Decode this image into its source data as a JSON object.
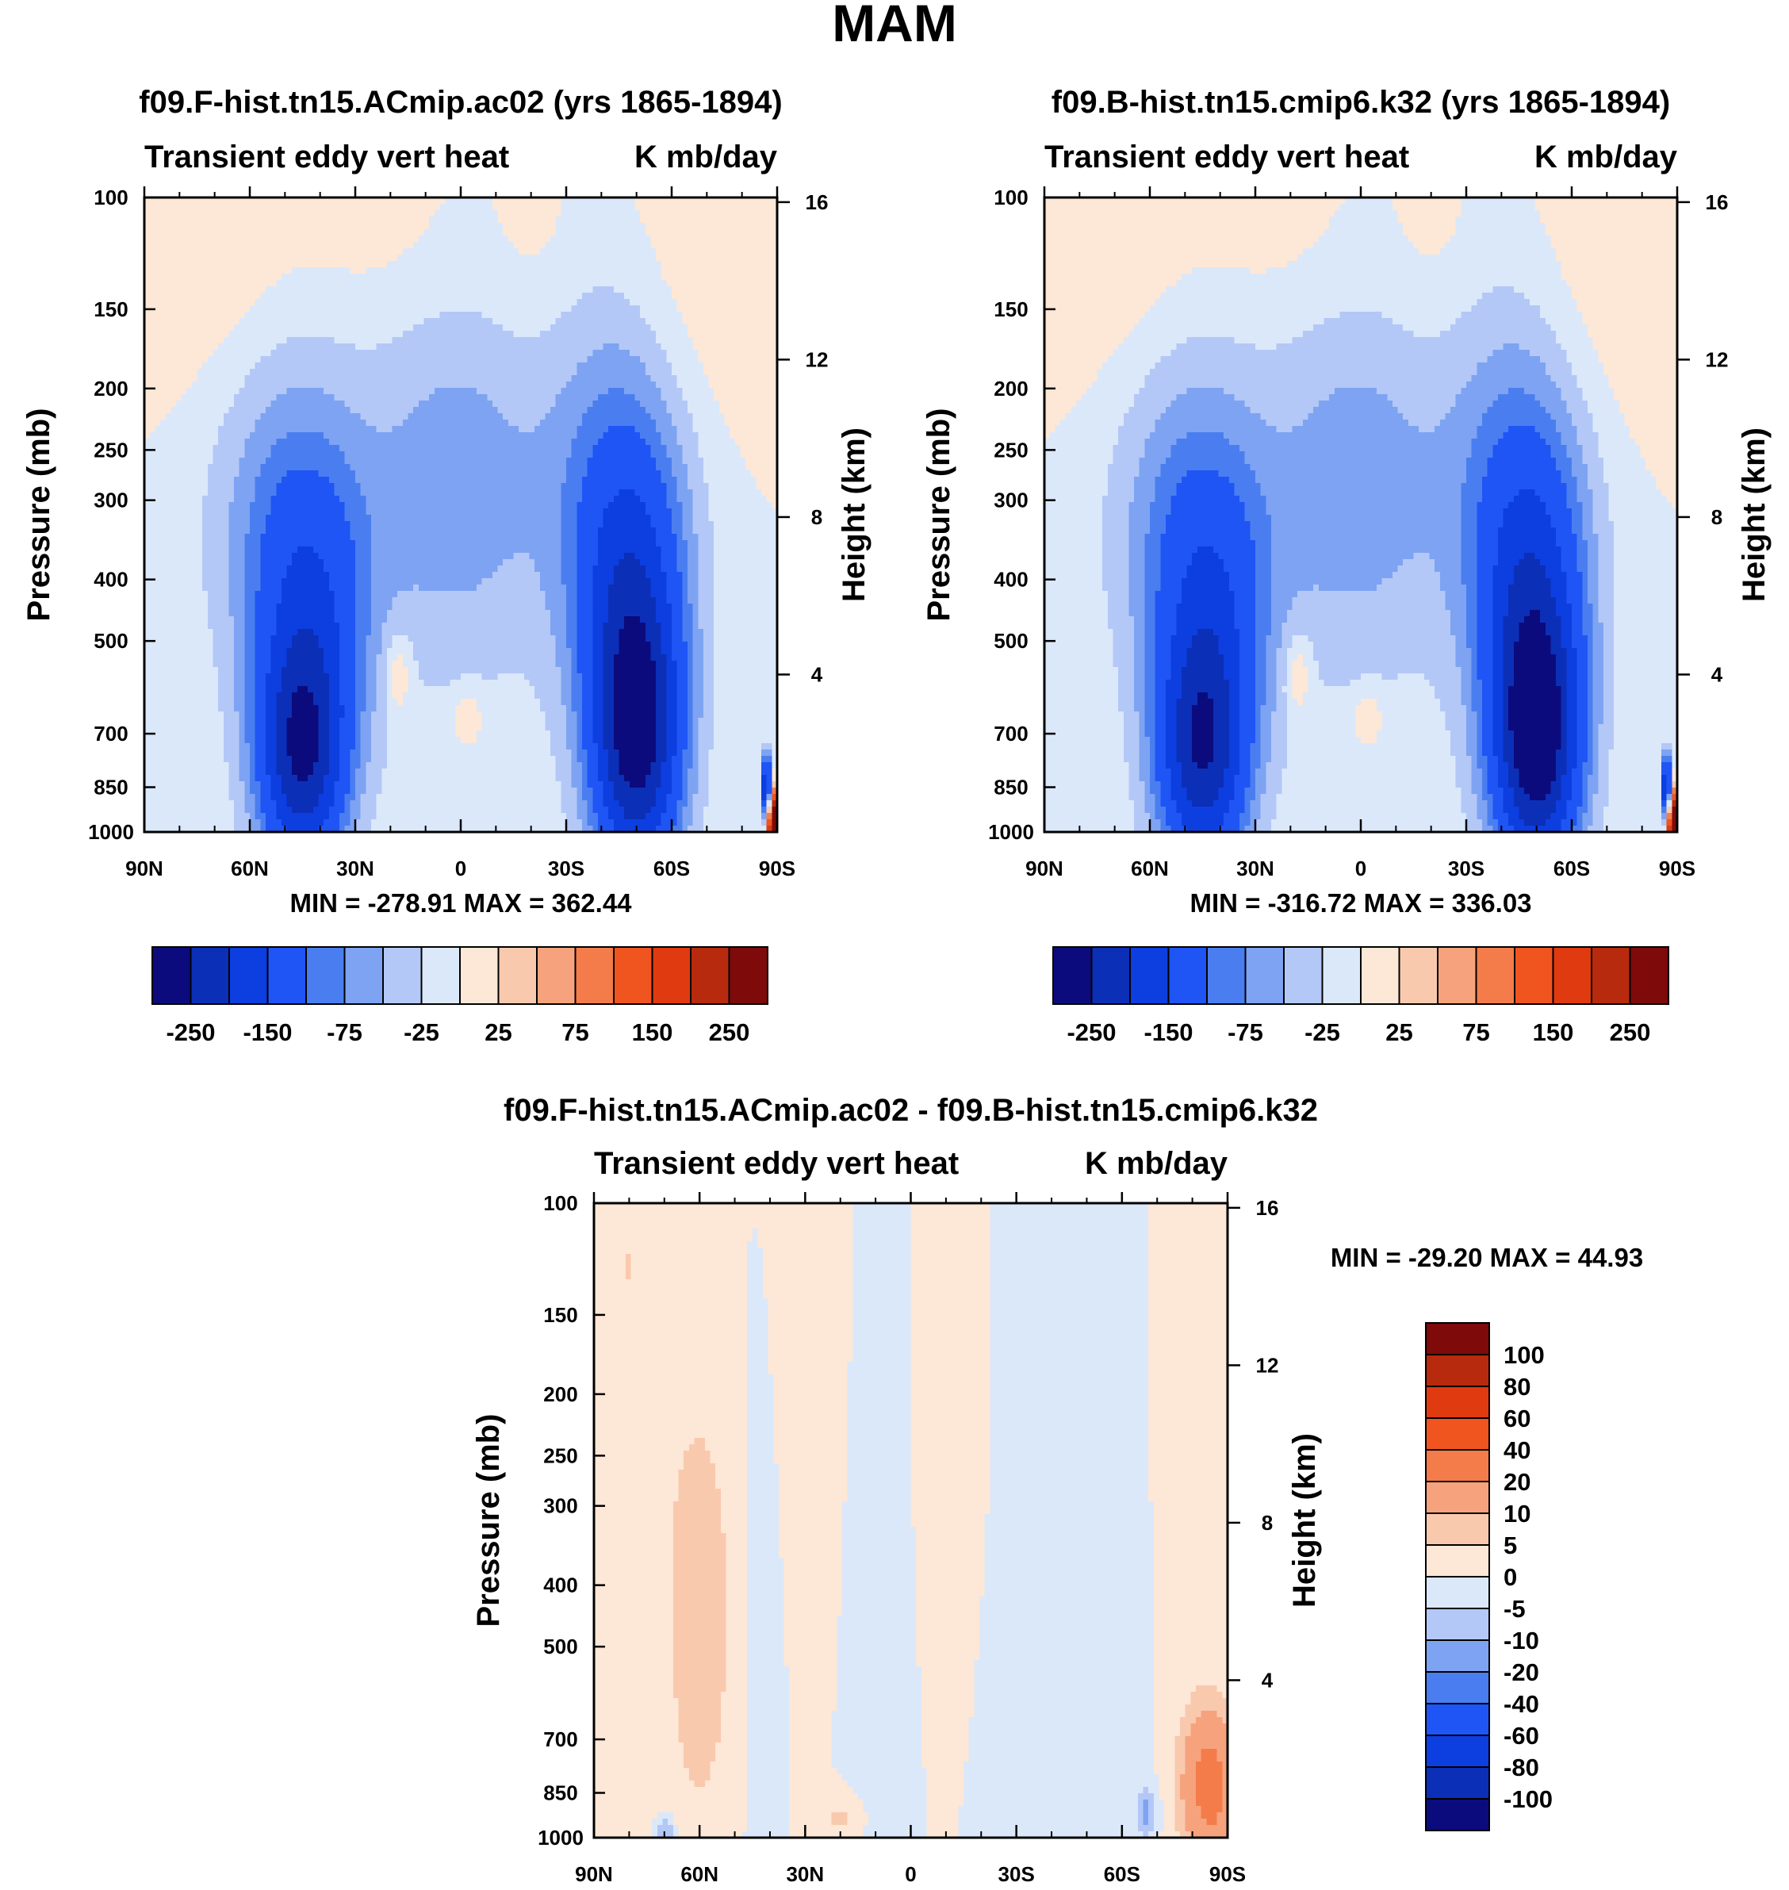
{
  "figure": {
    "title": "MAM",
    "pressure_levels": [
      100,
      150,
      200,
      250,
      300,
      400,
      500,
      700,
      850,
      1000
    ],
    "height_ticks_km": [
      4,
      8,
      12,
      16
    ],
    "lat_ticks": [
      "90N",
      "60N",
      "30N",
      "0",
      "30S",
      "60S",
      "90S"
    ],
    "ylabel": "Pressure (mb)",
    "ylabel_right": "Height (km)"
  },
  "chart_data": [
    {
      "type": "contour",
      "id": "panel1",
      "title": "f09.F-hist.tn15.ACmip.ac02 (yrs 1865-1894)",
      "left_label": "Transient eddy vert heat",
      "right_label": "K mb/day",
      "minmax": "MIN = -278.91   MAX = 362.44",
      "min": -278.91,
      "max": 362.44,
      "xlabel": "",
      "ylabel": "Pressure (mb)",
      "x_range": [
        90,
        -90
      ],
      "y_range_mb": [
        100,
        1000
      ],
      "colorbar": {
        "orientation": "horizontal",
        "levels": [
          -250,
          -200,
          -150,
          -100,
          -75,
          -50,
          -25,
          0,
          25,
          50,
          75,
          100,
          150,
          200,
          250
        ],
        "labels": [
          "-250",
          "-150",
          "-75",
          "-25",
          "25",
          "75",
          "150",
          "250"
        ],
        "colors": [
          "#0b0b7d",
          "#0c2fb8",
          "#0d3ee0",
          "#1f55f5",
          "#4a7ef0",
          "#7ea3f2",
          "#b3c8f7",
          "#dbe8fa",
          "#fde7d6",
          "#f9c9ae",
          "#f6a37d",
          "#f47c4a",
          "#f0541f",
          "#e03a10",
          "#b82a0e",
          "#7e0a0a"
        ]
      }
    },
    {
      "type": "contour",
      "id": "panel2",
      "title": "f09.B-hist.tn15.cmip6.k32 (yrs 1865-1894)",
      "left_label": "Transient eddy vert heat",
      "right_label": "K mb/day",
      "minmax": "MIN = -316.72   MAX = 336.03",
      "min": -316.72,
      "max": 336.03,
      "xlabel": "",
      "ylabel": "Pressure (mb)",
      "x_range": [
        90,
        -90
      ],
      "y_range_mb": [
        100,
        1000
      ],
      "colorbar": {
        "orientation": "horizontal",
        "levels": [
          -250,
          -200,
          -150,
          -100,
          -75,
          -50,
          -25,
          0,
          25,
          50,
          75,
          100,
          150,
          200,
          250
        ],
        "labels": [
          "-250",
          "-150",
          "-75",
          "-25",
          "25",
          "75",
          "150",
          "250"
        ],
        "colors": [
          "#0b0b7d",
          "#0c2fb8",
          "#0d3ee0",
          "#1f55f5",
          "#4a7ef0",
          "#7ea3f2",
          "#b3c8f7",
          "#dbe8fa",
          "#fde7d6",
          "#f9c9ae",
          "#f6a37d",
          "#f47c4a",
          "#f0541f",
          "#e03a10",
          "#b82a0e",
          "#7e0a0a"
        ]
      }
    },
    {
      "type": "contour",
      "id": "panel3",
      "title": "f09.F-hist.tn15.ACmip.ac02 - f09.B-hist.tn15.cmip6.k32",
      "left_label": "Transient eddy vert heat",
      "right_label": "K mb/day",
      "minmax": "MIN = -29.20  MAX =  44.93",
      "min": -29.2,
      "max": 44.93,
      "xlabel": "",
      "ylabel": "Pressure (mb)",
      "x_range": [
        90,
        -90
      ],
      "y_range_mb": [
        100,
        1000
      ],
      "colorbar": {
        "orientation": "vertical",
        "levels": [
          -100,
          -80,
          -60,
          -40,
          -20,
          -10,
          -5,
          0,
          5,
          10,
          20,
          40,
          60,
          80,
          100
        ],
        "labels": [
          "100",
          "80",
          "60",
          "40",
          "20",
          "10",
          "5",
          "0",
          "-5",
          "-10",
          "-20",
          "-40",
          "-60",
          "-80",
          "-100"
        ],
        "colors": [
          "#0b0b7d",
          "#0c2fb8",
          "#0d3ee0",
          "#1f55f5",
          "#4a7ef0",
          "#7ea3f2",
          "#b3c8f7",
          "#dbe8fa",
          "#fde7d6",
          "#f9c9ae",
          "#f6a37d",
          "#f47c4a",
          "#f0541f",
          "#e03a10",
          "#b82a0e",
          "#7e0a0a"
        ]
      }
    }
  ]
}
